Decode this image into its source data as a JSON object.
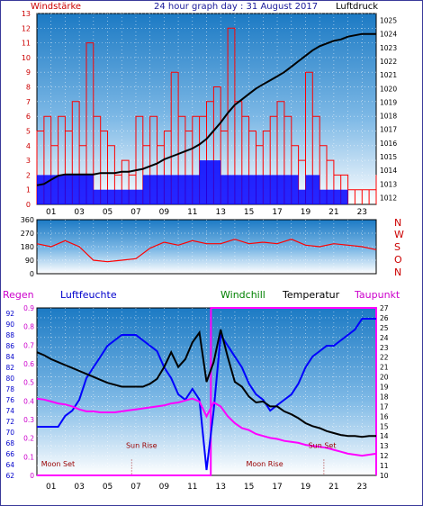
{
  "header": {
    "left_label": "Windstärke",
    "title": "24 hour graph day : 31 August 2017",
    "right_label": "Luftdruck"
  },
  "compass": [
    "N",
    "W",
    "S",
    "O",
    "N"
  ],
  "bottom_labels": {
    "regen": "Regen",
    "luftfeuchte": "Luftfeuchte",
    "windchill": "Windchill",
    "temperatur": "Temperatur",
    "taupunkt": "Taupunkt"
  },
  "sun_moon": {
    "moon_set": "Moon Set",
    "sun_rise_1": "Sun Rise",
    "moon_rise": "Moon Rise",
    "sun_set": "Sun Set"
  },
  "colors": {
    "windspeed": "#ff0000",
    "gust": "#0000ff",
    "pressure": "#000000",
    "wind_direction": "#ff0000",
    "humidity": "#0000ff",
    "temperature": "#000000",
    "dewpoint": "#ff00ff",
    "rain": "#ff00ff",
    "windchill_label": "#008000",
    "sky_top": "#1c7ac4",
    "sky_bottom": "#ffffff"
  },
  "chart_data": [
    {
      "type": "bar",
      "title": "24 hour graph day : 31 August 2017",
      "ylabel_left": "Windstärke",
      "ylabel_right": "Luftdruck",
      "x_ticks": [
        "01",
        "03",
        "05",
        "07",
        "09",
        "11",
        "13",
        "15",
        "17",
        "19",
        "21",
        "23"
      ],
      "y_left_ticks": [
        0,
        1,
        2,
        3,
        4,
        5,
        6,
        7,
        8,
        9,
        10,
        11,
        12,
        13
      ],
      "y_right_ticks": [
        1012,
        1013,
        1014,
        1015,
        1016,
        1017,
        1018,
        1019,
        1020,
        1021,
        1022,
        1023,
        1024,
        1025
      ],
      "ylim_left": [
        0,
        13
      ],
      "ylim_right": [
        1011.5,
        1025.5
      ],
      "grid": true,
      "series": [
        {
          "name": "Luftdruck",
          "axis": "right",
          "x": [
            0,
            0.5,
            1,
            1.5,
            2,
            2.5,
            3,
            3.5,
            4,
            4.5,
            5,
            5.5,
            6,
            6.5,
            7,
            7.5,
            8,
            8.5,
            9,
            9.5,
            10,
            10.5,
            11,
            11.5,
            12,
            12.5,
            13,
            13.5,
            14,
            14.5,
            15,
            15.5,
            16,
            16.5,
            17,
            17.5,
            18,
            18.5,
            19,
            19.5,
            20,
            20.5,
            21,
            21.5,
            22,
            22.5,
            23,
            23.5,
            24
          ],
          "values": [
            1012.9,
            1013.0,
            1013.3,
            1013.6,
            1013.7,
            1013.7,
            1013.7,
            1013.7,
            1013.7,
            1013.8,
            1013.8,
            1013.8,
            1013.9,
            1013.9,
            1014.0,
            1014.1,
            1014.3,
            1014.5,
            1014.8,
            1015.0,
            1015.2,
            1015.4,
            1015.6,
            1015.9,
            1016.3,
            1016.9,
            1017.5,
            1018.2,
            1018.8,
            1019.2,
            1019.6,
            1020.0,
            1020.3,
            1020.6,
            1020.9,
            1021.2,
            1021.6,
            1022.0,
            1022.4,
            1022.8,
            1023.1,
            1023.3,
            1023.5,
            1023.6,
            1023.8,
            1023.9,
            1024.0,
            1024.0,
            1024.0
          ]
        },
        {
          "name": "Windstärke (Böen)",
          "axis": "left",
          "hours": [
            0,
            0.5,
            1,
            1.5,
            2,
            2.5,
            3,
            3.5,
            4,
            4.5,
            5,
            5.5,
            6,
            6.5,
            7,
            7.5,
            8,
            8.5,
            9,
            9.5,
            10,
            10.5,
            11,
            11.5,
            12,
            12.5,
            13,
            13.5,
            14,
            14.5,
            15,
            15.5,
            16,
            16.5,
            17,
            17.5,
            18,
            18.5,
            19,
            19.5,
            20,
            20.5,
            21,
            21.5,
            22,
            22.5,
            23,
            23.5,
            24
          ],
          "values": [
            5,
            6,
            4,
            6,
            5,
            7,
            4,
            11,
            6,
            5,
            4,
            2,
            3,
            2,
            6,
            4,
            6,
            4,
            5,
            9,
            6,
            5,
            6,
            6,
            7,
            8,
            5,
            12,
            7,
            6,
            5,
            4,
            5,
            6,
            7,
            6,
            4,
            3,
            9,
            6,
            4,
            3,
            2,
            2,
            1,
            1,
            1,
            1,
            2
          ]
        },
        {
          "name": "Windstärke (Mittel)",
          "axis": "left",
          "hours": [
            0,
            0.5,
            1,
            1.5,
            2,
            2.5,
            3,
            3.5,
            4,
            4.5,
            5,
            5.5,
            6,
            6.5,
            7,
            7.5,
            8,
            8.5,
            9,
            9.5,
            10,
            10.5,
            11,
            11.5,
            12,
            12.5,
            13,
            13.5,
            14,
            14.5,
            15,
            15.5,
            16,
            16.5,
            17,
            17.5,
            18,
            18.5,
            19,
            19.5,
            20,
            20.5,
            21,
            21.5,
            22,
            22.5,
            23,
            23.5,
            24
          ],
          "values": [
            2,
            2,
            2,
            2,
            2,
            2,
            2,
            2,
            1,
            1,
            1,
            1,
            1,
            1,
            1,
            2,
            2,
            2,
            2,
            2,
            2,
            2,
            2,
            3,
            3,
            3,
            2,
            2,
            2,
            2,
            2,
            2,
            2,
            2,
            2,
            2,
            2,
            1,
            2,
            2,
            1,
            1,
            1,
            1,
            0,
            0,
            0,
            0,
            0
          ]
        }
      ]
    },
    {
      "type": "line",
      "title": "Windrichtung",
      "y_ticks": [
        0,
        90,
        180,
        270,
        360
      ],
      "ylim": [
        0,
        360
      ],
      "x_ticks": [
        "01",
        "03",
        "05",
        "07",
        "09",
        "11",
        "13",
        "15",
        "17",
        "19",
        "21",
        "23"
      ],
      "series": [
        {
          "name": "Windrichtung",
          "x": [
            0,
            1,
            2,
            3,
            4,
            5,
            6,
            7,
            8,
            9,
            10,
            11,
            12,
            13,
            14,
            15,
            16,
            17,
            18,
            19,
            20,
            21,
            22,
            23,
            24
          ],
          "values": [
            200,
            180,
            220,
            180,
            90,
            80,
            90,
            100,
            170,
            210,
            190,
            220,
            200,
            200,
            230,
            200,
            210,
            200,
            230,
            190,
            180,
            200,
            190,
            180,
            160
          ]
        }
      ]
    },
    {
      "type": "line",
      "title": "",
      "x_ticks": [
        "01",
        "03",
        "05",
        "07",
        "09",
        "11",
        "13",
        "15",
        "17",
        "19",
        "21",
        "23"
      ],
      "y_rain_ticks": [
        0,
        0.1,
        0.2,
        0.3,
        0.4,
        0.5,
        0.6,
        0.7,
        0.8,
        0.9
      ],
      "y_humidity_ticks": [
        62,
        64,
        66,
        68,
        70,
        72,
        74,
        76,
        78,
        80,
        82,
        84,
        86,
        88,
        90,
        92
      ],
      "y_temp_ticks": [
        10,
        11,
        12,
        13,
        14,
        15,
        16,
        17,
        18,
        19,
        20,
        21,
        22,
        23,
        24,
        25,
        26,
        27
      ],
      "ylim_humidity": [
        62,
        93
      ],
      "ylim_temp": [
        10,
        27
      ],
      "ylim_rain": [
        0,
        0.9
      ],
      "series": [
        {
          "name": "Luftfeuchte",
          "axis": "humidity",
          "x": [
            0,
            0.5,
            1,
            1.5,
            2,
            2.5,
            3,
            3.5,
            4,
            4.5,
            5,
            5.5,
            6,
            6.5,
            7,
            7.5,
            8,
            8.5,
            9,
            9.5,
            10,
            10.5,
            11,
            11.5,
            12,
            12.5,
            13,
            13.5,
            14,
            14.5,
            15,
            15.5,
            16,
            16.5,
            17,
            17.5,
            18,
            18.5,
            19,
            19.5,
            20,
            20.5,
            21,
            21.5,
            22,
            22.5,
            23,
            23.5,
            24
          ],
          "values": [
            71,
            71,
            71,
            71,
            73,
            74,
            76,
            80,
            82,
            84,
            86,
            87,
            88,
            88,
            88,
            87,
            86,
            85,
            82,
            80,
            77,
            76,
            78,
            76,
            63,
            74,
            88,
            86,
            84,
            82,
            79,
            77,
            76,
            74,
            75,
            76,
            77,
            79,
            82,
            84,
            85,
            86,
            86,
            87,
            88,
            89,
            91,
            91,
            91
          ]
        },
        {
          "name": "Temperatur",
          "axis": "temp",
          "x": [
            0,
            0.5,
            1,
            1.5,
            2,
            2.5,
            3,
            3.5,
            4,
            4.5,
            5,
            5.5,
            6,
            6.5,
            7,
            7.5,
            8,
            8.5,
            9,
            9.5,
            10,
            10.5,
            11,
            11.5,
            12,
            12.5,
            13,
            13.5,
            14,
            14.5,
            15,
            15.5,
            16,
            16.5,
            17,
            17.5,
            18,
            18.5,
            19,
            19.5,
            20,
            20.5,
            21,
            21.5,
            22,
            22.5,
            23,
            23.5,
            24
          ],
          "values": [
            22.5,
            22.2,
            21.8,
            21.5,
            21.2,
            20.9,
            20.6,
            20.3,
            20.0,
            19.7,
            19.4,
            19.2,
            19.0,
            19.0,
            19.0,
            19.0,
            19.3,
            19.8,
            21.0,
            22.5,
            21.0,
            21.8,
            23.5,
            24.5,
            19.5,
            21.5,
            24.8,
            22.0,
            19.5,
            19.0,
            18.0,
            17.4,
            17.5,
            17.0,
            17.0,
            16.5,
            16.2,
            15.8,
            15.3,
            15.0,
            14.8,
            14.5,
            14.3,
            14.1,
            14.0,
            14.0,
            13.9,
            14.0,
            14.0
          ]
        },
        {
          "name": "Taupunkt",
          "axis": "temp",
          "x": [
            0,
            0.5,
            1,
            1.5,
            2,
            2.5,
            3,
            3.5,
            4,
            4.5,
            5,
            5.5,
            6,
            6.5,
            7,
            7.5,
            8,
            8.5,
            9,
            9.5,
            10,
            10.5,
            11,
            11.5,
            12,
            12.5,
            13,
            13.5,
            14,
            14.5,
            15,
            15.5,
            16,
            16.5,
            17,
            17.5,
            18,
            18.5,
            19,
            19.5,
            20,
            20.5,
            21,
            21.5,
            22,
            22.5,
            23,
            23.5,
            24
          ],
          "values": [
            17.8,
            17.7,
            17.5,
            17.3,
            17.2,
            17.0,
            16.7,
            16.5,
            16.5,
            16.4,
            16.4,
            16.4,
            16.5,
            16.6,
            16.7,
            16.8,
            16.9,
            17.0,
            17.1,
            17.3,
            17.4,
            17.6,
            17.8,
            17.5,
            16.0,
            17.4,
            17.0,
            16.0,
            15.3,
            14.8,
            14.6,
            14.2,
            14.0,
            13.8,
            13.7,
            13.5,
            13.4,
            13.3,
            13.1,
            13.0,
            12.9,
            12.8,
            12.6,
            12.4,
            12.2,
            12.1,
            12.0,
            12.1,
            12.2
          ]
        },
        {
          "name": "Regen",
          "axis": "rain",
          "x": [
            0,
            12.3,
            12.31,
            24
          ],
          "values": [
            0,
            0,
            0.9,
            0.9
          ]
        }
      ]
    }
  ]
}
